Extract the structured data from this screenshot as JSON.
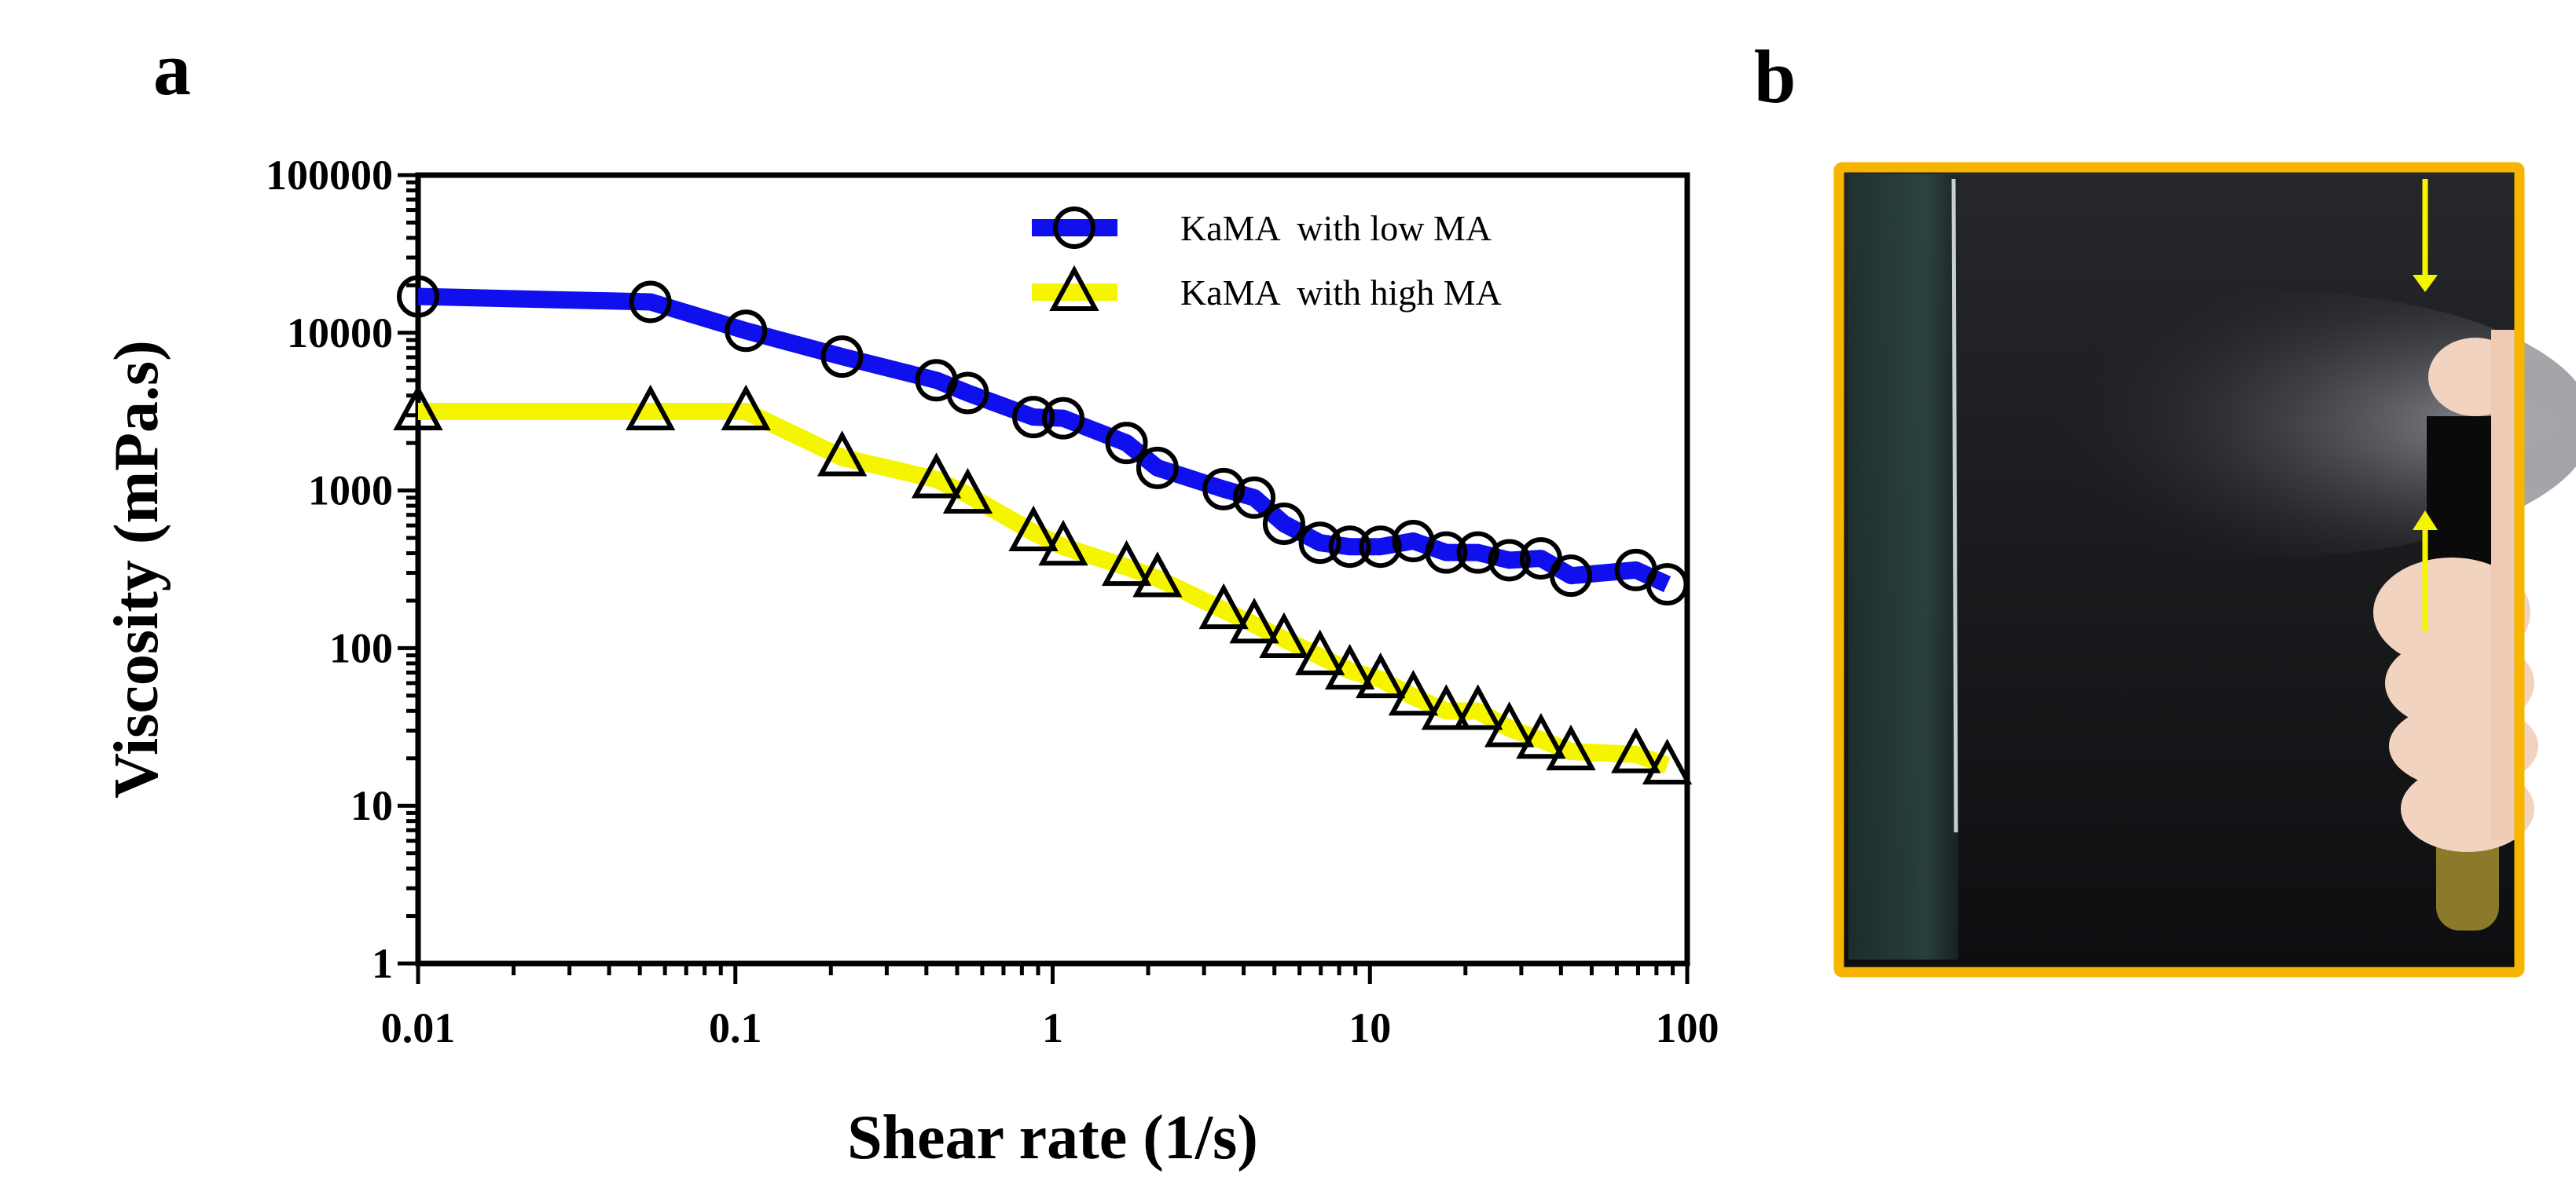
{
  "panels": {
    "a": "a",
    "b": "b"
  },
  "photo": {
    "frame_color": "#f7b500",
    "arrow_color": "#f5f500",
    "description_none": ""
  },
  "chart_data": {
    "type": "line",
    "title": "",
    "xlabel": "Shear rate (1/s)",
    "ylabel": "Viscosity (mPa.s)",
    "xscale": "log",
    "yscale": "log",
    "xlim": [
      0.01,
      100
    ],
    "ylim": [
      1,
      100000
    ],
    "xticks": [
      0.01,
      0.1,
      1,
      10,
      100
    ],
    "xtick_labels": [
      "0.01",
      "0.1",
      "1",
      "10",
      "100"
    ],
    "yticks": [
      1,
      10,
      100,
      1000,
      10000,
      100000
    ],
    "ytick_labels": [
      "1",
      "10",
      "100",
      "1000",
      "10000",
      "100000"
    ],
    "grid": false,
    "legend_position": "top-right",
    "series": [
      {
        "name": "KaMA  with low MA",
        "color": "#1010ee",
        "marker": "circle",
        "x": [
          0.01,
          0.054,
          0.108,
          0.217,
          0.43,
          0.54,
          0.87,
          1.08,
          1.71,
          2.14,
          3.46,
          4.32,
          5.36,
          6.96,
          8.64,
          10.8,
          13.7,
          17.4,
          21.9,
          27.5,
          34.6,
          43,
          68.9,
          86.5
        ],
        "y": [
          17000,
          15700,
          10300,
          7060,
          5000,
          4150,
          2920,
          2870,
          2000,
          1390,
          1020,
          900,
          615,
          466,
          440,
          440,
          478,
          404,
          404,
          361,
          371,
          288,
          313,
          254
        ]
      },
      {
        "name": "KaMA  with high MA",
        "color": "#f5f500",
        "marker": "triangle",
        "x": [
          0.01,
          0.054,
          0.108,
          0.217,
          0.43,
          0.54,
          0.87,
          1.08,
          1.71,
          2.14,
          3.46,
          4.32,
          5.36,
          6.96,
          8.64,
          10.8,
          13.7,
          17.4,
          21.9,
          27.5,
          34.6,
          43,
          68.9,
          86.5
        ],
        "y": [
          3170,
          3170,
          3170,
          1620,
          1175,
          938,
          542,
          440,
          327,
          277,
          174,
          141,
          114,
          88.7,
          71.9,
          63.4,
          49.2,
          39.9,
          39.9,
          31,
          26.2,
          22.1,
          21.2,
          18
        ]
      }
    ]
  }
}
